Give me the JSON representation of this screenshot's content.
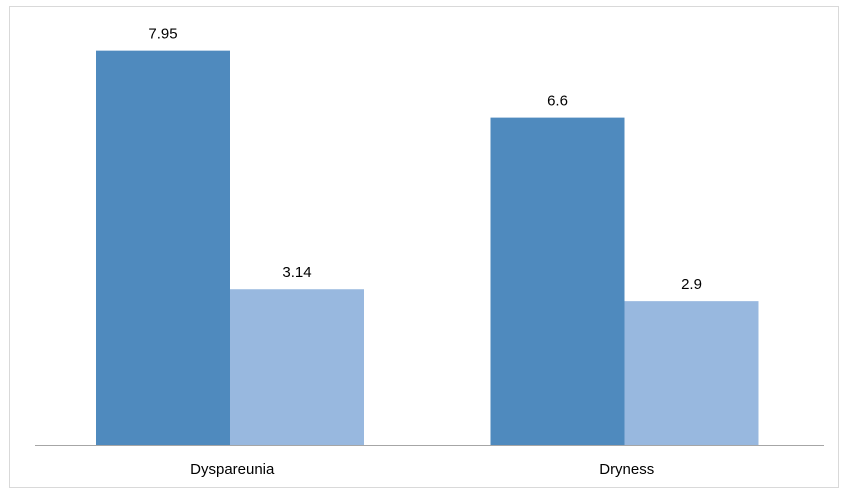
{
  "chart_data": {
    "type": "bar",
    "categories": [
      "Dyspareunia",
      "Dryness"
    ],
    "series": [
      {
        "values": [
          7.95,
          6.6
        ],
        "color": "#4f8abe"
      },
      {
        "values": [
          3.14,
          2.9
        ],
        "color": "#98b8df"
      }
    ],
    "data_labels": [
      [
        "7.95",
        "6.6"
      ],
      [
        "3.14",
        "2.9"
      ]
    ],
    "ylim": [
      0,
      8.85
    ],
    "grid": false,
    "legend": "none",
    "axis_color": "#a6a6a6"
  }
}
